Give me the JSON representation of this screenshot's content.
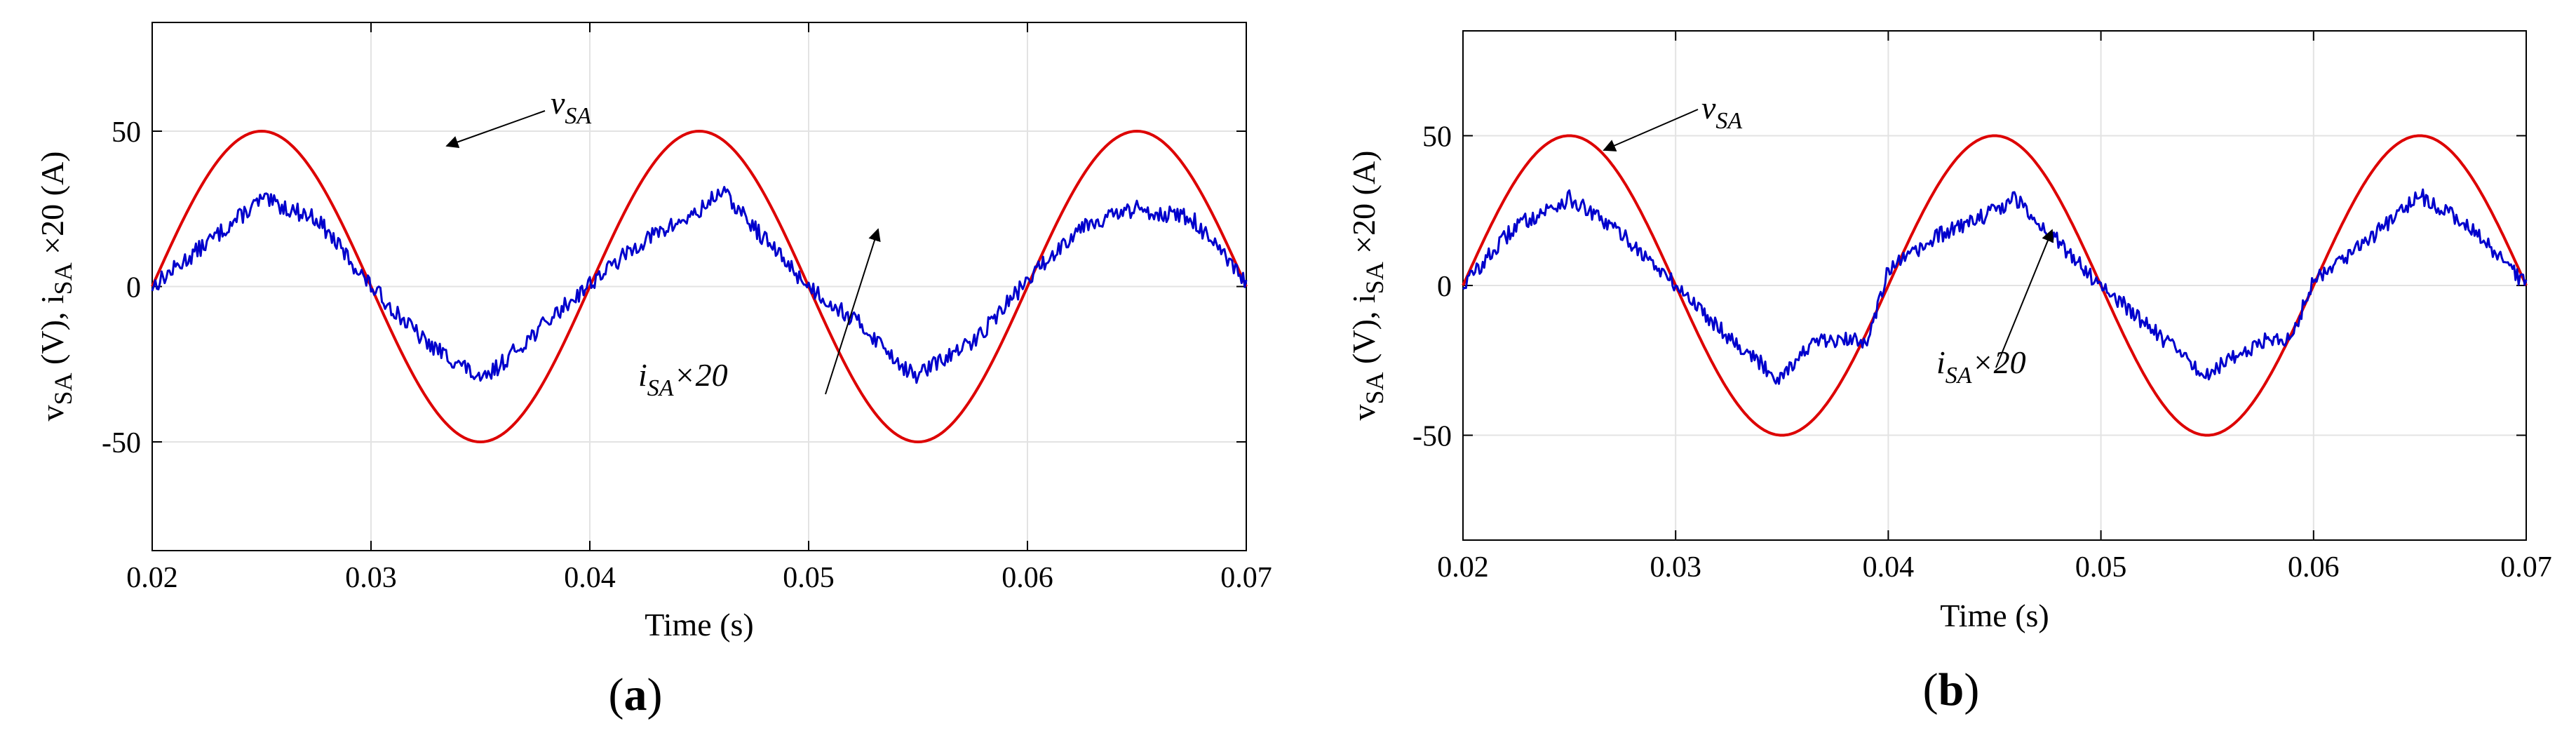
{
  "figure": {
    "captions": {
      "a": "a",
      "b": "b"
    }
  },
  "chart_data": [
    {
      "id": "a",
      "type": "line",
      "caption": "a",
      "xlabel": "Time (s)",
      "ylabel": {
        "v": "v",
        "v_sub": "SA",
        "mid": " (V), i",
        "i_sub": "SA",
        "tail": " ×20 (A)"
      },
      "xlim": [
        0.02,
        0.07
      ],
      "ylim": [
        -85,
        85
      ],
      "grid": true,
      "x_ticks": [
        0.02,
        0.03,
        0.04,
        0.05,
        0.06,
        0.07
      ],
      "x_tick_labels": [
        "0.02",
        "0.03",
        "0.04",
        "0.05",
        "0.06",
        "0.07"
      ],
      "y_ticks": [
        -50,
        0,
        50
      ],
      "y_tick_labels": [
        "-50",
        "0",
        "50"
      ],
      "series": [
        {
          "name": "vSA",
          "color": "#dd0000",
          "kind": "sine",
          "amplitude": 50,
          "frequency_hz": 50,
          "phase_deg": 0
        },
        {
          "name": "iSA×20",
          "color": "#0000cc",
          "kind": "samples",
          "x": [
            0.02,
            0.0225,
            0.025,
            0.0275,
            0.03,
            0.0325,
            0.0345,
            0.035,
            0.037,
            0.04,
            0.0425,
            0.045,
            0.046,
            0.0475,
            0.05,
            0.0525,
            0.0548,
            0.0575,
            0.06,
            0.0625,
            0.065,
            0.0675,
            0.07
          ],
          "values": [
            0,
            14,
            28,
            22,
            0,
            -18,
            -27,
            -31,
            -18,
            1,
            15,
            24,
            31,
            19,
            0,
            -13,
            -29,
            -18,
            2,
            20,
            25,
            22,
            1
          ]
        }
      ],
      "annotations": [
        {
          "series": "vSA",
          "main": "v",
          "sub": "SA",
          "tail": ""
        },
        {
          "series": "iSA×20",
          "main": "i",
          "sub": "SA",
          "tail": "×20"
        }
      ]
    },
    {
      "id": "b",
      "type": "line",
      "caption": "b",
      "xlabel": "Time (s)",
      "ylabel": {
        "v": "v",
        "v_sub": "SA",
        "mid": " (V), i",
        "i_sub": "SA",
        "tail": " ×20 (A)"
      },
      "xlim": [
        0.02,
        0.07
      ],
      "ylim": [
        -85,
        85
      ],
      "grid": true,
      "x_ticks": [
        0.02,
        0.03,
        0.04,
        0.05,
        0.06,
        0.07
      ],
      "x_tick_labels": [
        "0.02",
        "0.03",
        "0.04",
        "0.05",
        "0.06",
        "0.07"
      ],
      "y_ticks": [
        -50,
        0,
        50
      ],
      "y_tick_labels": [
        "-50",
        "0",
        "50"
      ],
      "series": [
        {
          "name": "vSA",
          "color": "#dd0000",
          "kind": "sine",
          "amplitude": 50,
          "frequency_hz": 50,
          "phase_deg": 0
        },
        {
          "name": "iSA×20",
          "color": "#0000cc",
          "kind": "samples",
          "x": [
            0.02,
            0.0225,
            0.025,
            0.0275,
            0.03,
            0.0325,
            0.0348,
            0.0365,
            0.039,
            0.04,
            0.0425,
            0.045,
            0.046,
            0.0475,
            0.05,
            0.0525,
            0.0548,
            0.0575,
            0.059,
            0.06,
            0.0625,
            0.065,
            0.0675,
            0.07
          ],
          "values": [
            0,
            20,
            29,
            17,
            0,
            -17,
            -31,
            -19,
            -18,
            5,
            17,
            25,
            29,
            18,
            0,
            -15,
            -30,
            -19,
            -17,
            2,
            15,
            30,
            19,
            0
          ]
        }
      ],
      "annotations": [
        {
          "series": "vSA",
          "main": "v",
          "sub": "SA",
          "tail": ""
        },
        {
          "series": "iSA×20",
          "main": "i",
          "sub": "SA",
          "tail": "×20"
        }
      ]
    }
  ]
}
